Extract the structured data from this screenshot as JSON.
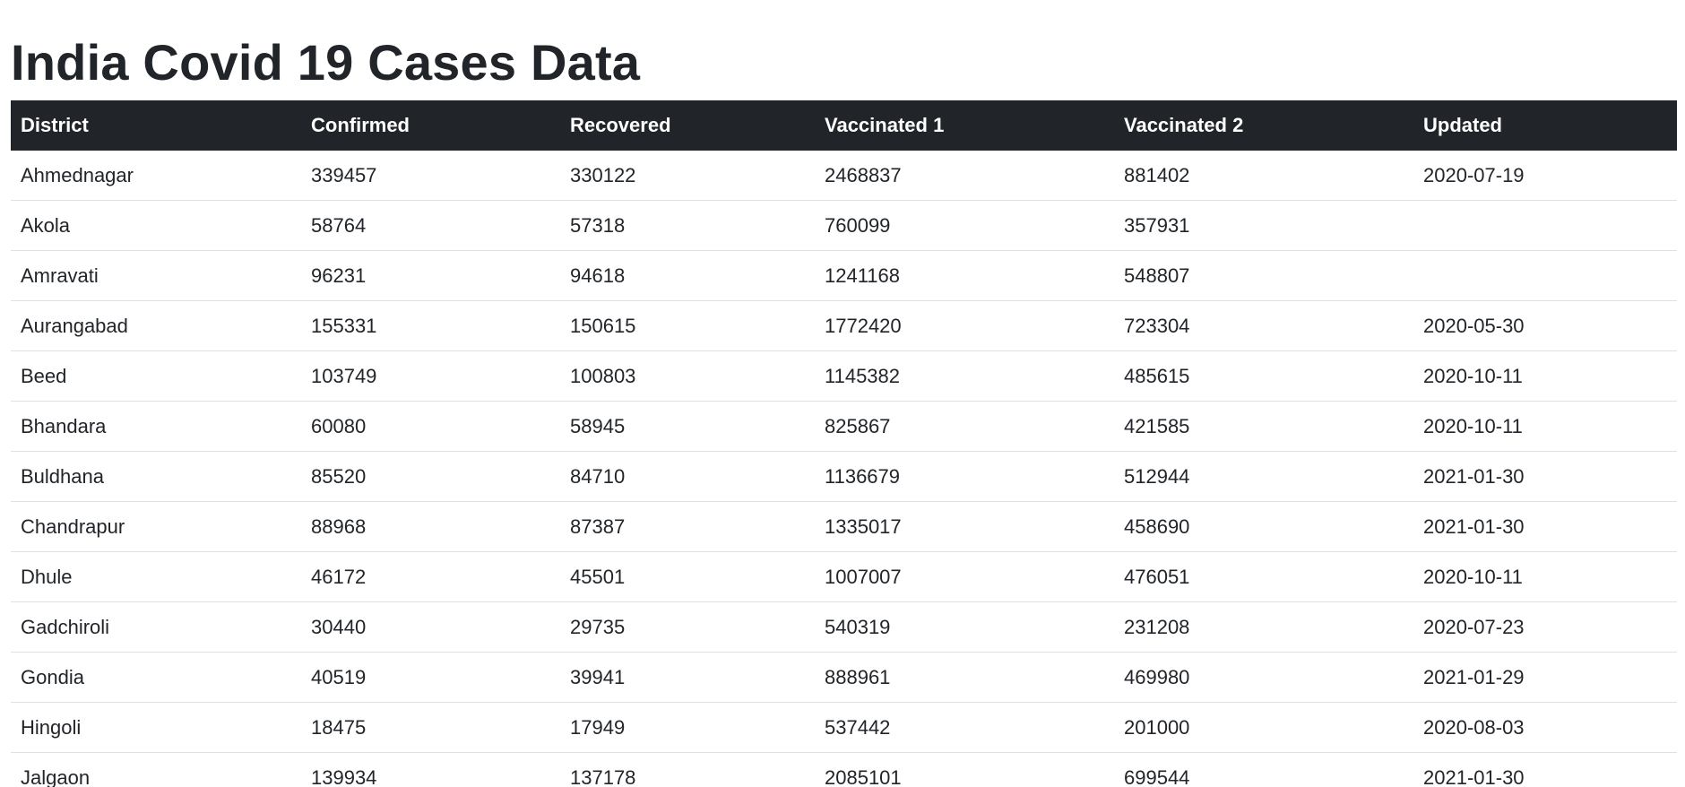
{
  "page": {
    "title": "India Covid 19 Cases Data"
  },
  "table": {
    "headers": [
      "District",
      "Confirmed",
      "Recovered",
      "Vaccinated 1",
      "Vaccinated 2",
      "Updated"
    ],
    "rows": [
      [
        "Ahmednagar",
        "339457",
        "330122",
        "2468837",
        "881402",
        "2020-07-19"
      ],
      [
        "Akola",
        "58764",
        "57318",
        "760099",
        "357931",
        ""
      ],
      [
        "Amravati",
        "96231",
        "94618",
        "1241168",
        "548807",
        ""
      ],
      [
        "Aurangabad",
        "155331",
        "150615",
        "1772420",
        "723304",
        "2020-05-30"
      ],
      [
        "Beed",
        "103749",
        "100803",
        "1145382",
        "485615",
        "2020-10-11"
      ],
      [
        "Bhandara",
        "60080",
        "58945",
        "825867",
        "421585",
        "2020-10-11"
      ],
      [
        "Buldhana",
        "85520",
        "84710",
        "1136679",
        "512944",
        "2021-01-30"
      ],
      [
        "Chandrapur",
        "88968",
        "87387",
        "1335017",
        "458690",
        "2021-01-30"
      ],
      [
        "Dhule",
        "46172",
        "45501",
        "1007007",
        "476051",
        "2020-10-11"
      ],
      [
        "Gadchiroli",
        "30440",
        "29735",
        "540319",
        "231208",
        "2020-07-23"
      ],
      [
        "Gondia",
        "40519",
        "39941",
        "888961",
        "469980",
        "2021-01-29"
      ],
      [
        "Hingoli",
        "18475",
        "17949",
        "537442",
        "201000",
        "2020-08-03"
      ],
      [
        "Jalgaon",
        "139934",
        "137178",
        "2085101",
        "699544",
        "2021-01-30"
      ]
    ]
  },
  "colors": {
    "header_bg": "#212529",
    "header_text": "#ffffff",
    "body_text": "#212529",
    "row_border": "#dee2e6"
  }
}
